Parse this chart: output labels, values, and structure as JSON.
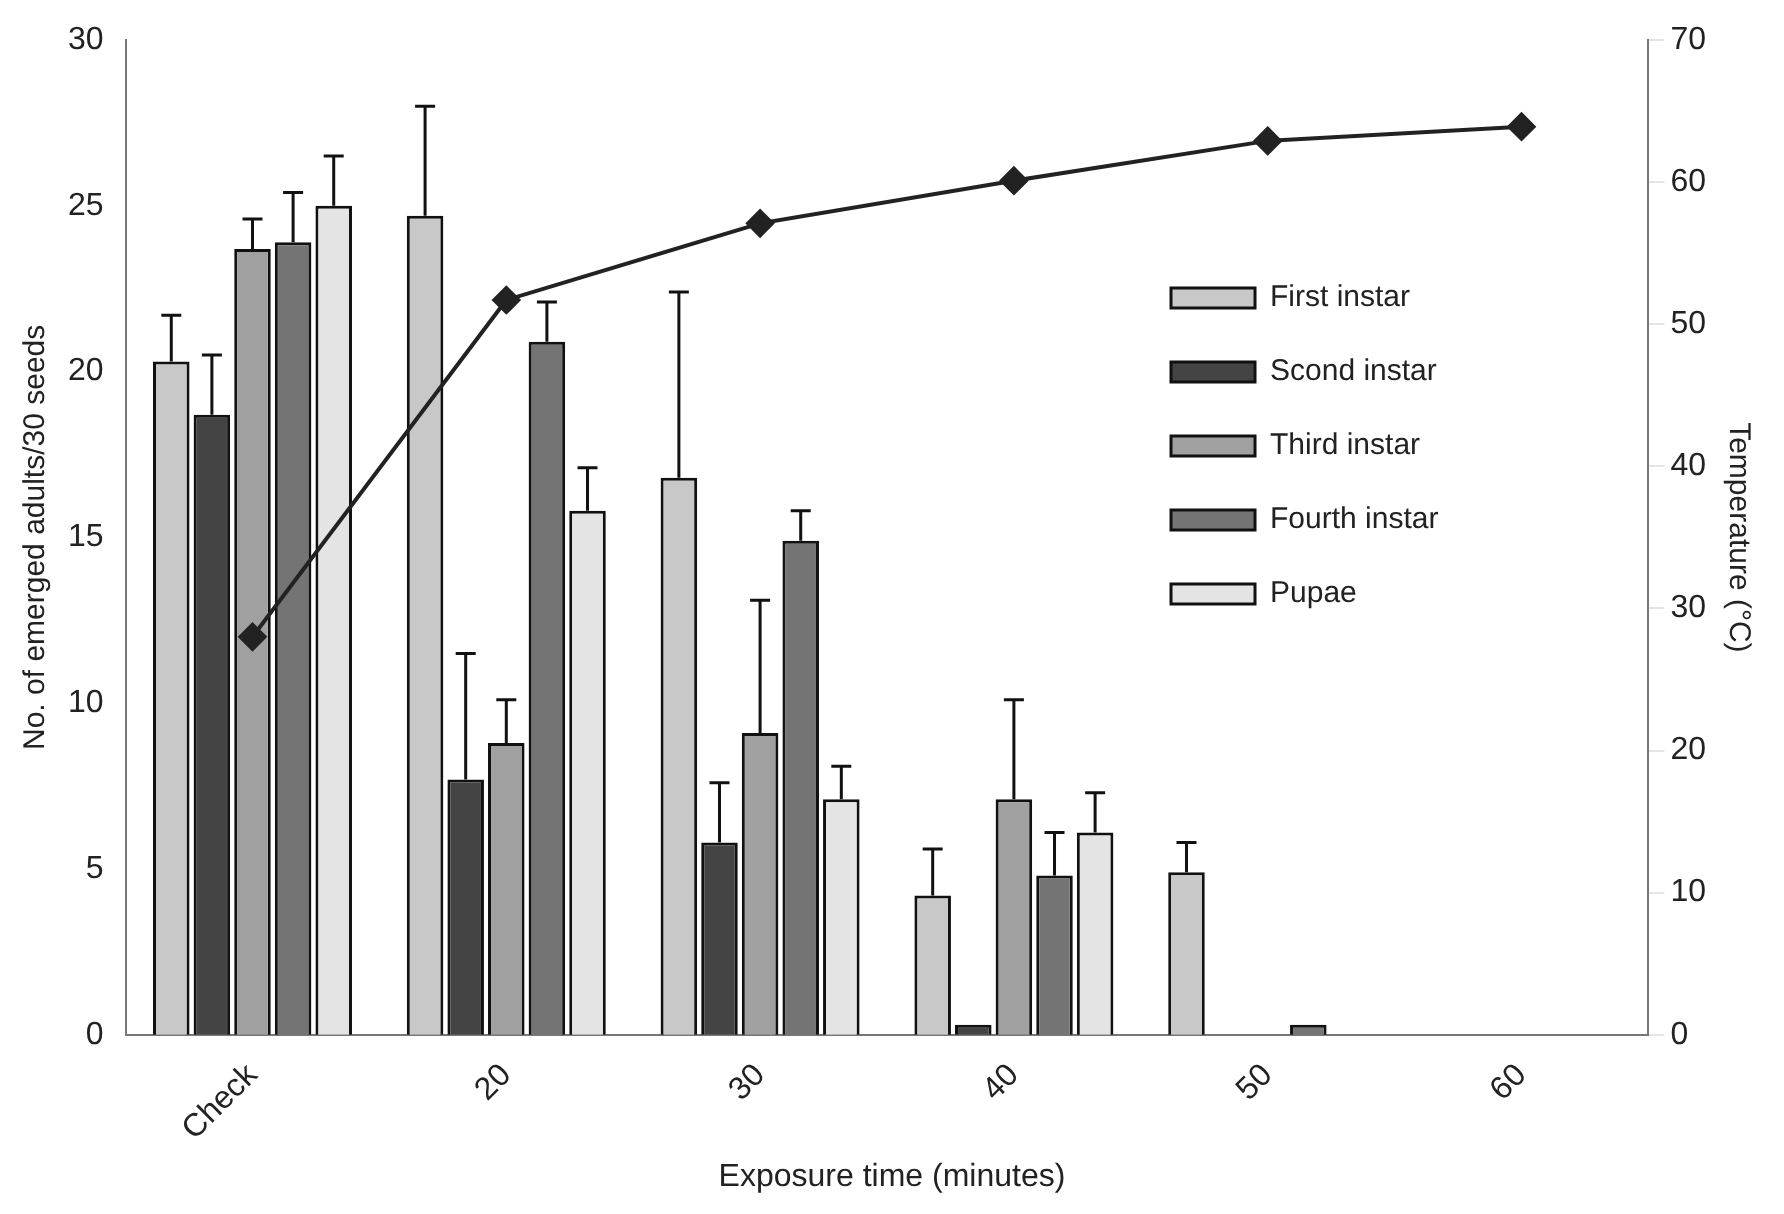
{
  "chart_data": {
    "type": "bar",
    "xlabel": "Exposure time (minutes)",
    "ylabel": "No. of emerged adults/30 seeds",
    "y2label": "Temperature (°C)",
    "categories": [
      "Check",
      "20",
      "30",
      "40",
      "50",
      "60"
    ],
    "series": [
      {
        "name": "First instar",
        "color": "#c8c8c8",
        "values": [
          20.3,
          24.7,
          16.8,
          4.2,
          4.9,
          0
        ],
        "errors": [
          [
            20.3,
            21.7
          ],
          [
            24.7,
            28.0
          ],
          [
            16.8,
            22.4
          ],
          [
            4.2,
            5.6
          ],
          [
            4.9,
            5.8
          ],
          null
        ]
      },
      {
        "name": "Scond instar",
        "color": "#444444",
        "values": [
          18.7,
          7.7,
          5.8,
          0.3,
          0,
          0
        ],
        "errors": [
          [
            18.7,
            20.5
          ],
          [
            7.7,
            11.5
          ],
          [
            5.8,
            7.6
          ],
          null,
          null,
          null
        ]
      },
      {
        "name": "Third instar",
        "color": "#a0a0a0",
        "values": [
          23.7,
          8.8,
          9.1,
          7.1,
          0,
          0
        ],
        "errors": [
          [
            23.7,
            24.6
          ],
          [
            8.8,
            10.1
          ],
          [
            9.1,
            13.1
          ],
          [
            7.1,
            10.1
          ],
          null,
          null
        ]
      },
      {
        "name": "Fourth instar",
        "color": "#747474",
        "values": [
          23.9,
          20.9,
          14.9,
          4.8,
          0.3,
          0
        ],
        "errors": [
          [
            23.9,
            25.4
          ],
          [
            20.9,
            22.1
          ],
          [
            14.9,
            15.8
          ],
          [
            4.8,
            6.1
          ],
          null,
          null
        ]
      },
      {
        "name": "Pupae",
        "color": "#e4e4e4",
        "values": [
          25.0,
          15.8,
          7.1,
          6.1,
          0,
          0
        ],
        "errors": [
          [
            25.0,
            26.5
          ],
          [
            15.8,
            17.1
          ],
          [
            7.1,
            8.1
          ],
          [
            6.1,
            7.3
          ],
          null,
          null
        ]
      },
      {
        "type": "line",
        "axis": "y2",
        "color": "#222222",
        "marker": "diamond",
        "values": [
          28,
          51.7,
          57.1,
          60.1,
          62.9,
          63.9
        ]
      }
    ],
    "ylim": [
      0,
      30
    ],
    "yticks": [
      0,
      5,
      10,
      15,
      20,
      25,
      30
    ],
    "y2lim": [
      0,
      70
    ],
    "y2ticks": [
      0,
      10,
      20,
      30,
      40,
      50,
      60,
      70
    ],
    "grid": false,
    "legend": "right"
  }
}
